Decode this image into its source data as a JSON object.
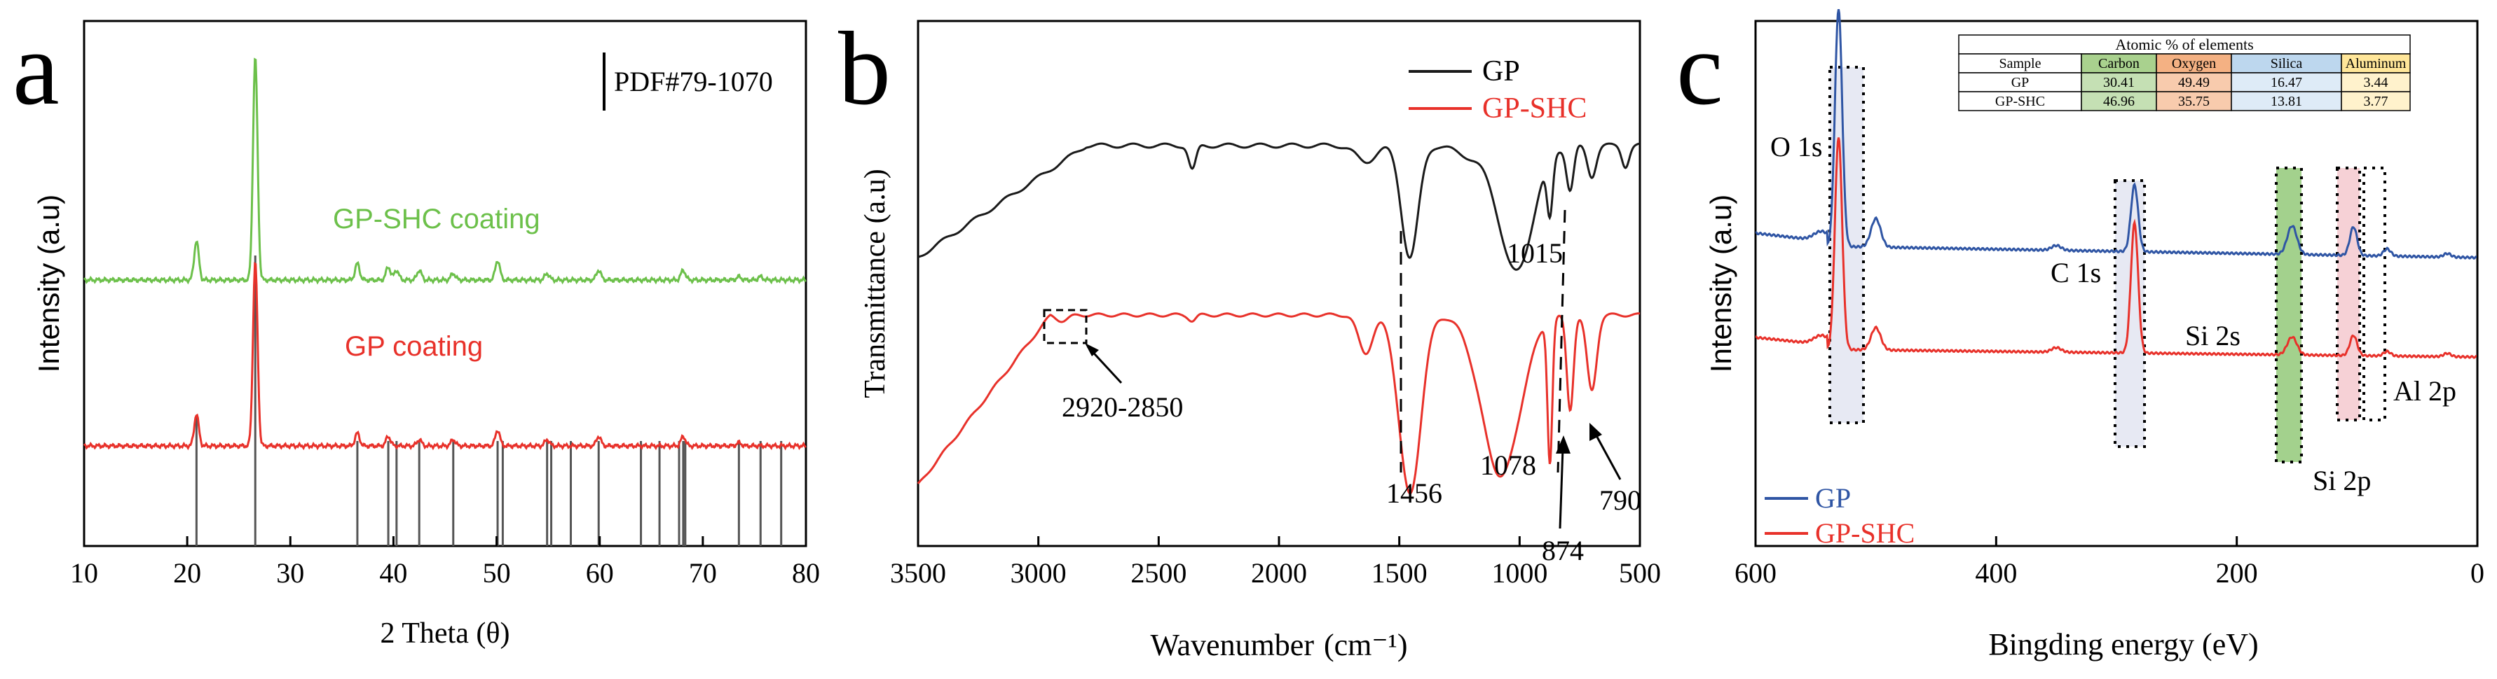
{
  "chart_data": [
    {
      "panel_letter": "a",
      "type": "line",
      "xlabel": "2 Theta (θ)",
      "ylabel": "Intensity (a.u)",
      "xlim": [
        10,
        80
      ],
      "xticks": [
        "10",
        "20",
        "30",
        "40",
        "50",
        "60",
        "70",
        "80"
      ],
      "reference_label": "PDF#79-1070",
      "reference_peaks": [
        20.9,
        26.6,
        36.5,
        39.5,
        40.3,
        42.5,
        45.8,
        50.1,
        50.6,
        54.9,
        55.3,
        57.2,
        59.9,
        64.0,
        65.8,
        67.7,
        68.1,
        68.3,
        73.5,
        75.6,
        77.6
      ],
      "series": [
        {
          "name": "GP-SHC coating",
          "color": "#6cc04a",
          "peaks": [
            [
              20.9,
              0.12
            ],
            [
              26.6,
              0.68
            ],
            [
              36.5,
              0.05
            ],
            [
              39.5,
              0.04
            ],
            [
              40.3,
              0.03
            ],
            [
              42.5,
              0.03
            ],
            [
              45.8,
              0.02
            ],
            [
              50.1,
              0.06
            ],
            [
              54.9,
              0.02
            ],
            [
              59.9,
              0.03
            ],
            [
              68.1,
              0.03
            ],
            [
              73.5,
              0.01
            ],
            [
              75.6,
              0.01
            ]
          ]
        },
        {
          "name": "GP coating",
          "color": "#e8312a",
          "peaks": [
            [
              20.9,
              0.1
            ],
            [
              26.6,
              0.58
            ],
            [
              36.5,
              0.04
            ],
            [
              39.5,
              0.03
            ],
            [
              42.5,
              0.02
            ],
            [
              45.8,
              0.02
            ],
            [
              50.1,
              0.05
            ],
            [
              54.9,
              0.02
            ],
            [
              59.9,
              0.03
            ],
            [
              68.1,
              0.03
            ],
            [
              73.5,
              0.01
            ]
          ]
        }
      ]
    },
    {
      "panel_letter": "b",
      "type": "line",
      "xlabel": "Wavenumber",
      "xlabel_unit": "(cm⁻¹)",
      "ylabel": "Transmittance (a.u)",
      "xlim": [
        3500,
        500
      ],
      "xticks": [
        "3500",
        "3000",
        "2500",
        "2000",
        "1500",
        "1000",
        "500"
      ],
      "series": [
        {
          "name": "GP",
          "color": "#1a1a1a"
        },
        {
          "name": "GP-SHC",
          "color": "#e8312a"
        }
      ],
      "annotations": [
        {
          "text": "2920-2850",
          "x": 2885
        },
        {
          "text": "1456",
          "x": 1456
        },
        {
          "text": "1078",
          "x": 1078
        },
        {
          "text": "1015",
          "x": 1015
        },
        {
          "text": "874",
          "x": 874
        },
        {
          "text": "790",
          "x": 790
        }
      ]
    },
    {
      "panel_letter": "c",
      "type": "line",
      "xlabel": "Bingding energy (eV)",
      "ylabel": "Intensity (a.u)",
      "xlim": [
        600,
        0
      ],
      "xticks": [
        "600",
        "400",
        "200",
        "0"
      ],
      "series": [
        {
          "name": "GP",
          "color": "#2f55a4"
        },
        {
          "name": "GP-SHC",
          "color": "#e8312a"
        }
      ],
      "peak_labels": [
        "O 1s",
        "C 1s",
        "Si 2s",
        "Si 2p",
        "Al 2p"
      ],
      "table": {
        "title": "Atomic % of elements",
        "headers": [
          "Sample",
          "Carbon",
          "Oxygen",
          "Silica",
          "Aluminum"
        ],
        "header_colors": [
          "#ffffff",
          "#a9d18e",
          "#f4b183",
          "#bdd7ee",
          "#ffe699"
        ],
        "cell_colors": [
          "#ffffff",
          "#c5e0b4",
          "#f8cbad",
          "#deebf7",
          "#fff2cc"
        ],
        "rows": [
          [
            "GP",
            "30.41",
            "49.49",
            "16.47",
            "3.44"
          ],
          [
            "GP-SHC",
            "46.96",
            "35.75",
            "13.81",
            "3.77"
          ]
        ]
      }
    }
  ]
}
